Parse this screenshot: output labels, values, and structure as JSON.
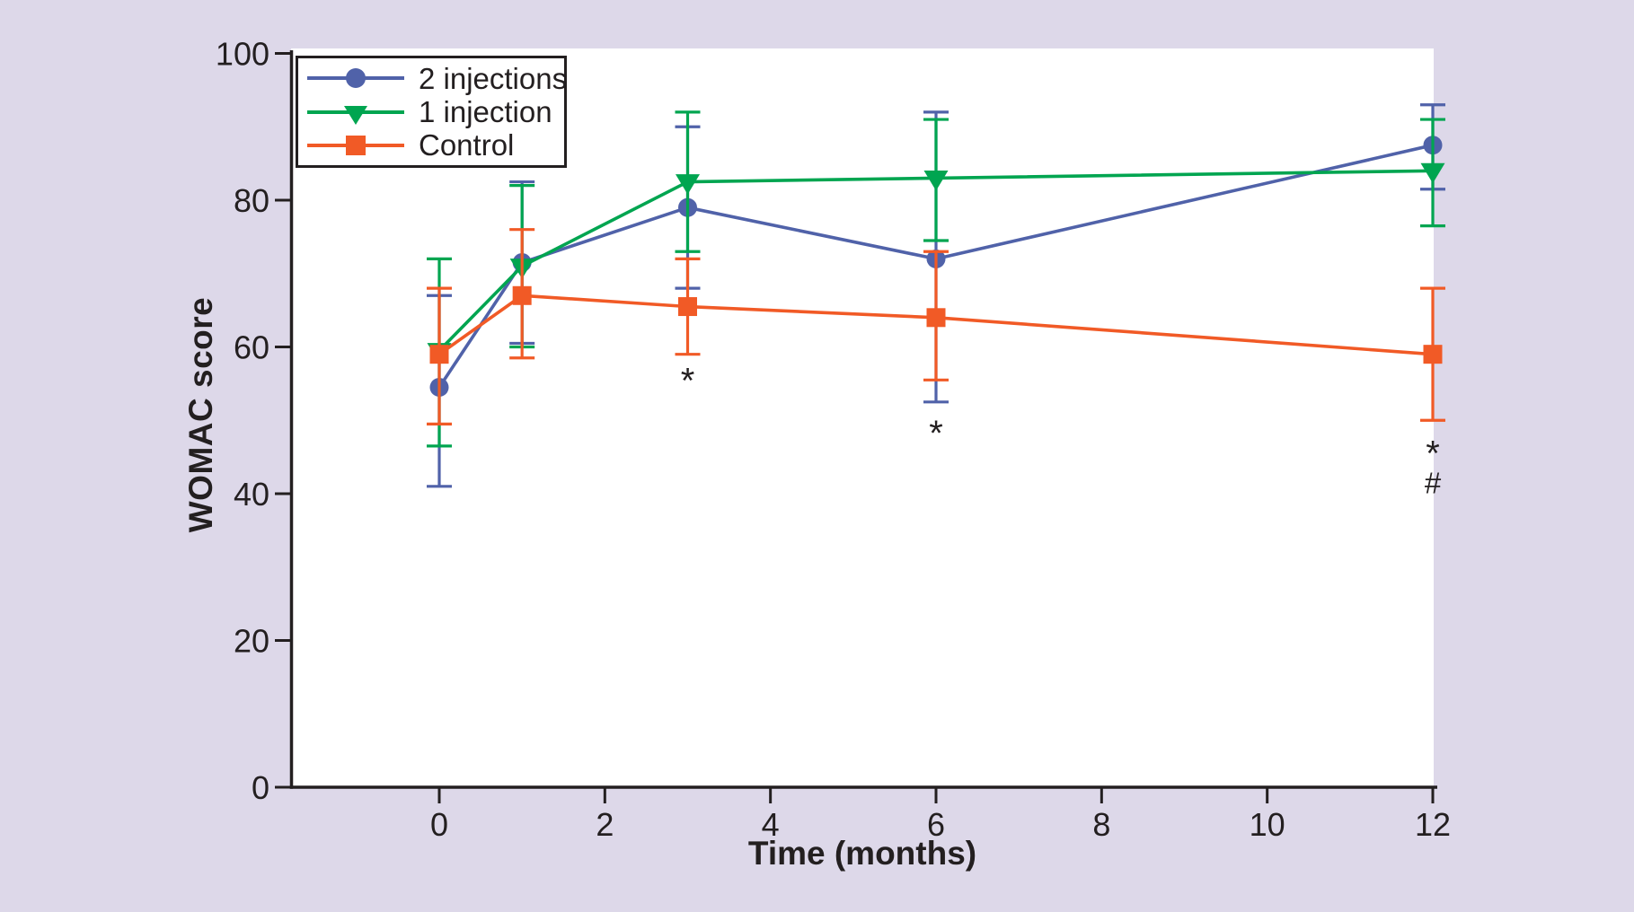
{
  "page": {
    "background_color": "#ddd8e9",
    "plot_background_color": "#ffffff",
    "axis_color": "#231f20"
  },
  "chart_data": {
    "type": "line",
    "title": "",
    "xlabel": "Time (months)",
    "ylabel": "WOMAC score",
    "x": [
      0,
      1,
      3,
      6,
      12
    ],
    "x_ticks": [
      0,
      2,
      4,
      6,
      8,
      10,
      12
    ],
    "y_ticks": [
      0,
      20,
      40,
      60,
      80,
      100
    ],
    "xlim": [
      -1.8,
      12.3
    ],
    "ylim": [
      0,
      100
    ],
    "grid": false,
    "error_bars": true,
    "legend_position": "top-left",
    "series": [
      {
        "name": "2 injections",
        "color": "#5062a9",
        "marker": "circle",
        "values": [
          54.5,
          71.5,
          79,
          72,
          87.5
        ],
        "err_low": [
          41,
          60.5,
          68,
          52.5,
          81.5
        ],
        "err_high": [
          67,
          82.5,
          90,
          92,
          93
        ]
      },
      {
        "name": "1 injection",
        "color": "#00a550",
        "marker": "triangle-down",
        "values": [
          59.5,
          71,
          82.5,
          83,
          84
        ],
        "err_low": [
          46.5,
          60,
          73,
          74.5,
          76.5
        ],
        "err_high": [
          72,
          82,
          92,
          91,
          91
        ]
      },
      {
        "name": "Control",
        "color": "#f15a26",
        "marker": "square",
        "values": [
          59,
          67,
          65.5,
          64,
          59
        ],
        "err_low": [
          49.5,
          58.5,
          59,
          55.5,
          50
        ],
        "err_high": [
          68,
          76,
          72,
          73,
          68
        ]
      }
    ],
    "annotations": [
      {
        "text": "*",
        "x": 3,
        "y": 56.3
      },
      {
        "text": "*",
        "x": 6,
        "y": 49.2
      },
      {
        "text": "*",
        "x": 12,
        "y": 46.4
      },
      {
        "text": "#",
        "x": 12,
        "y": 41.5
      }
    ]
  }
}
